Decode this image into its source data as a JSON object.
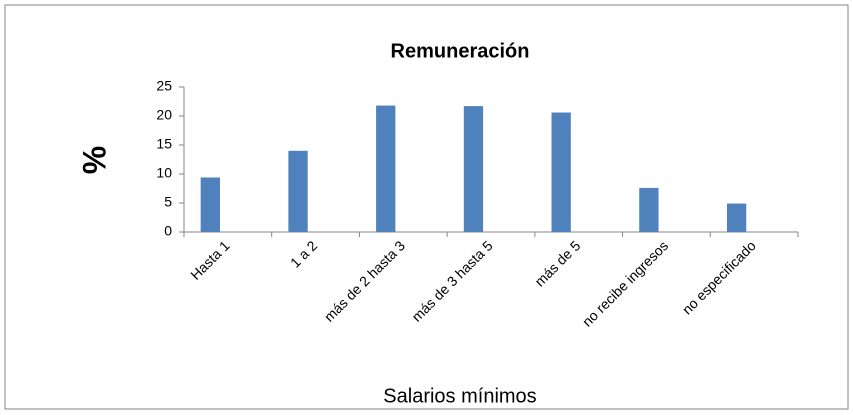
{
  "chart_data": {
    "type": "bar",
    "title": "Remuneración",
    "x_label": "Salarios mínimos",
    "y_label": "%",
    "categories": [
      "Hasta 1",
      "1 a 2",
      "más de  2 hasta 3",
      "más de 3 hasta 5",
      "más de 5",
      "no recibe ingresos",
      "no especificado"
    ],
    "values": [
      9.4,
      14,
      21.8,
      21.7,
      20.6,
      7.6,
      4.9
    ],
    "color": "#4f81bd",
    "ylim": [
      0,
      25
    ],
    "yticks": [
      0,
      5,
      10,
      15,
      20,
      25
    ],
    "grid": false
  }
}
